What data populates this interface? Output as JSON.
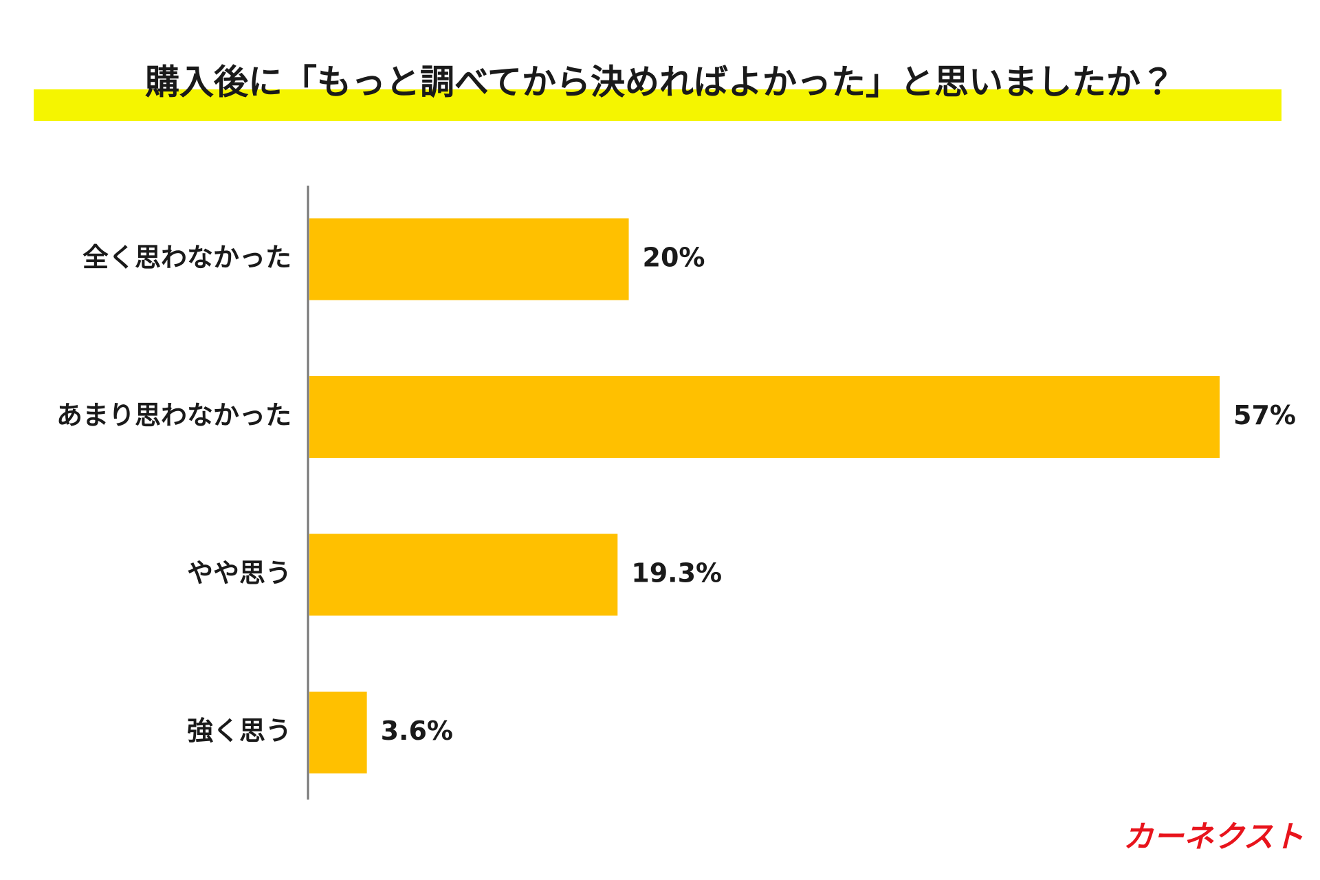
{
  "chart_data": {
    "type": "bar",
    "orientation": "horizontal",
    "title": "購入後に「もっと調べてから決めればよかった」と思いましたか？",
    "categories": [
      "全く思わなかった",
      "あまり思わなかった",
      "やや思う",
      "強く思う"
    ],
    "values": [
      20,
      57,
      19.3,
      3.6
    ],
    "value_labels": [
      "20%",
      "57%",
      "19.3%",
      "3.6%"
    ],
    "color": "#ffc000",
    "brand": "カーネクスト"
  }
}
